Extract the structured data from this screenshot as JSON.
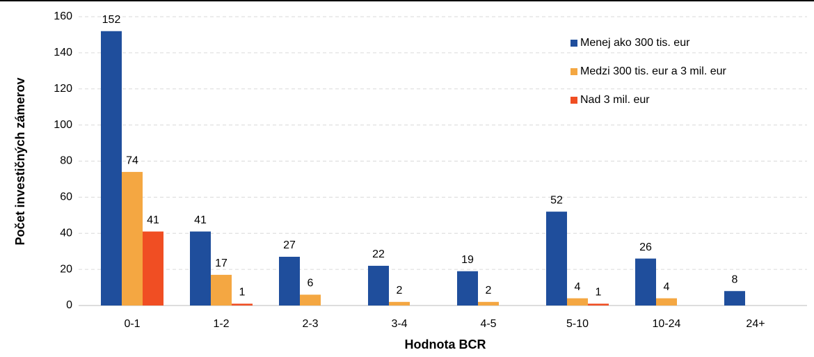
{
  "chart_data": {
    "type": "bar",
    "x_label": "Hodnota BCR",
    "y_label": "Počet investičných zámerov",
    "categories": [
      "0-1",
      "1-2",
      "2-3",
      "3-4",
      "4-5",
      "5-10",
      "10-24",
      "24+"
    ],
    "series": [
      {
        "name": "Menej ako 300 tis. eur",
        "color": "#1f4e9c",
        "values": [
          152,
          41,
          27,
          22,
          19,
          52,
          26,
          8
        ]
      },
      {
        "name": "Medzi 300 tis. eur a 3 mil. eur",
        "color": "#f4a742",
        "values": [
          74,
          17,
          6,
          2,
          2,
          4,
          4,
          null
        ]
      },
      {
        "name": "Nad 3 mil. eur",
        "color": "#f04e23",
        "values": [
          41,
          1,
          null,
          null,
          null,
          1,
          null,
          null
        ]
      }
    ],
    "ylim": [
      0,
      160
    ],
    "yticks": [
      0,
      20,
      40,
      60,
      80,
      100,
      120,
      140,
      160
    ],
    "grid": true,
    "legend": "upper right"
  }
}
